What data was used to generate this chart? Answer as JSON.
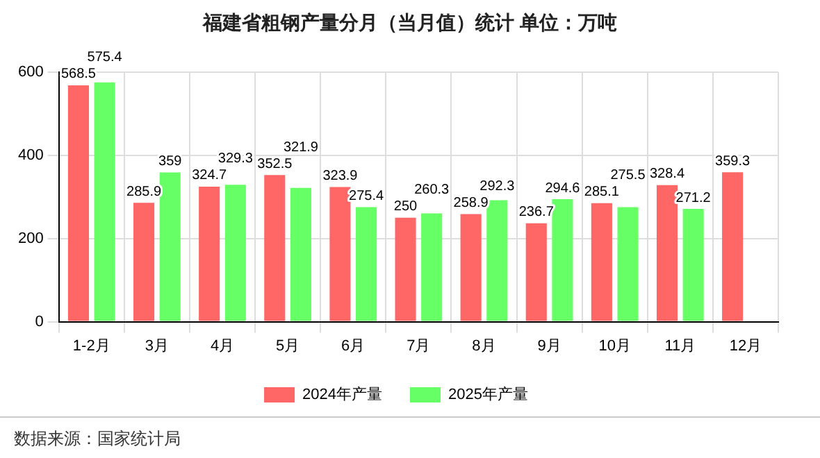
{
  "chart_data": {
    "type": "bar",
    "title": "福建省粗钢产量分月（当月值）统计  单位：万吨",
    "categories": [
      "1-2月",
      "3月",
      "4月",
      "5月",
      "6月",
      "7月",
      "8月",
      "9月",
      "10月",
      "11月",
      "12月"
    ],
    "series": [
      {
        "name": "2024年产量",
        "color": "#ff6666",
        "values": [
          568.5,
          285.9,
          324.7,
          352.5,
          323.9,
          250,
          258.9,
          236.7,
          285.1,
          328.4,
          359.3
        ]
      },
      {
        "name": "2025年产量",
        "color": "#66ff66",
        "values": [
          575.4,
          359,
          329.3,
          321.9,
          275.4,
          260.3,
          292.3,
          294.6,
          275.5,
          271.2,
          null
        ]
      }
    ],
    "ylim": [
      0,
      600
    ],
    "yticks": [
      0,
      200,
      400,
      600
    ],
    "grid": true,
    "legend": "bottom",
    "data_labels": true,
    "annotations": [
      "数据来源：国家统计局"
    ]
  }
}
